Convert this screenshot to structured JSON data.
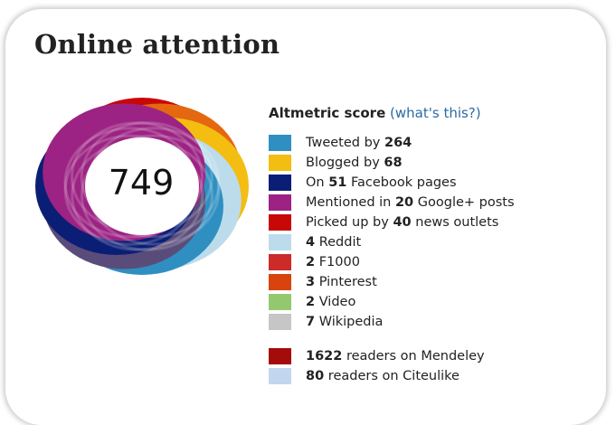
{
  "header": {
    "title": "Online attention"
  },
  "score": {
    "value": "749",
    "label": "Altmetric score",
    "help_link": "(what's this?)"
  },
  "sources": [
    {
      "pre": "Tweeted by ",
      "count": "264",
      "post": "",
      "color": "#2f8fc1"
    },
    {
      "pre": "Blogged by ",
      "count": "68",
      "post": "",
      "color": "#f3bd12"
    },
    {
      "pre": "On ",
      "count": "51",
      "post": " Facebook pages",
      "color": "#0b1e76"
    },
    {
      "pre": "Mentioned in ",
      "count": "20",
      "post": " Google+ posts",
      "color": "#9c2383"
    },
    {
      "pre": "Picked up by ",
      "count": "40",
      "post": " news outlets",
      "color": "#c80707"
    },
    {
      "pre": "",
      "count": "4",
      "post": " Reddit",
      "color": "#bcdcec"
    },
    {
      "pre": "",
      "count": "2",
      "post": " F1000",
      "color": "#cd2a2a"
    },
    {
      "pre": "",
      "count": "3",
      "post": " Pinterest",
      "color": "#d9430d"
    },
    {
      "pre": "",
      "count": "2",
      "post": " Video",
      "color": "#94c86e"
    },
    {
      "pre": "",
      "count": "7",
      "post": " Wikipedia",
      "color": "#c6c6c6"
    }
  ],
  "readers": [
    {
      "pre": "",
      "count": "1622",
      "post": " readers on Mendeley",
      "color": "#a50b0b"
    },
    {
      "pre": "",
      "count": "80",
      "post": " readers on Citeulike",
      "color": "#c3d6f0"
    }
  ],
  "donut_colors": [
    "#c80707",
    "#e5670f",
    "#f3bd12",
    "#bcdcec",
    "#2f8fc1",
    "#5a4c7a",
    "#0b1e76",
    "#9c2383"
  ]
}
